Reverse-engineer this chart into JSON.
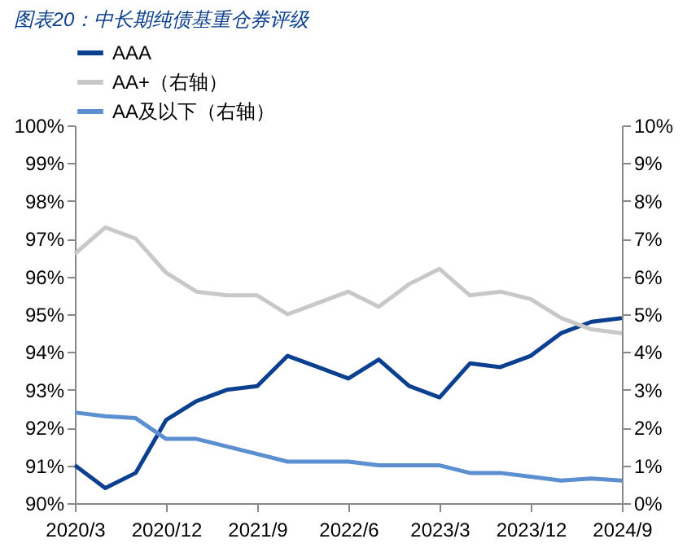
{
  "chart_data": {
    "type": "line",
    "title": "图表20：中长期纯债基重仓券评级",
    "categories": [
      "2020/3",
      null,
      null,
      "2020/12",
      null,
      null,
      "2021/9",
      null,
      null,
      "2022/6",
      null,
      null,
      "2023/3",
      null,
      null,
      "2023/12",
      null,
      null,
      "2024/9"
    ],
    "series": [
      {
        "name": "AAA",
        "color": "#0b3f8f",
        "values": [
          91.0,
          90.4,
          90.8,
          92.2,
          92.7,
          93.0,
          93.1,
          93.9,
          93.6,
          93.3,
          93.8,
          93.1,
          92.8,
          93.7,
          93.6,
          93.9,
          94.5,
          94.8,
          94.9
        ]
      },
      {
        "name": "AA+（右轴）",
        "color": "#c8c8c8",
        "axis": "y2",
        "values": [
          6.6,
          7.3,
          7.0,
          6.1,
          5.6,
          5.5,
          5.5,
          5.0,
          5.3,
          5.6,
          5.2,
          5.8,
          6.2,
          5.5,
          5.6,
          5.4,
          4.9,
          4.6,
          4.5
        ]
      },
      {
        "name": "AA及以下（右轴）",
        "color": "#5b8fd0",
        "axis": "y2",
        "values": [
          2.4,
          2.3,
          2.25,
          1.7,
          1.7,
          1.5,
          1.3,
          1.1,
          1.1,
          1.1,
          1.0,
          1.0,
          1.0,
          0.8,
          0.8,
          0.7,
          0.6,
          0.65,
          0.6
        ]
      }
    ],
    "ylim": [
      90,
      100
    ],
    "yticks": [
      {
        "value": 90,
        "label": "90%"
      },
      {
        "value": 91,
        "label": "91%"
      },
      {
        "value": 92,
        "label": "92%"
      },
      {
        "value": 93,
        "label": "93%"
      },
      {
        "value": 94,
        "label": "94%"
      },
      {
        "value": 95,
        "label": "95%"
      },
      {
        "value": 96,
        "label": "96%"
      },
      {
        "value": 97,
        "label": "97%"
      },
      {
        "value": 98,
        "label": "98%"
      },
      {
        "value": 99,
        "label": "99%"
      },
      {
        "value": 100,
        "label": "100%"
      }
    ],
    "y2lim": [
      0,
      10
    ],
    "y2ticks": [
      {
        "value": 0,
        "label": "0%"
      },
      {
        "value": 1,
        "label": "1%"
      },
      {
        "value": 2,
        "label": "2%"
      },
      {
        "value": 3,
        "label": "3%"
      },
      {
        "value": 4,
        "label": "4%"
      },
      {
        "value": 5,
        "label": "5%"
      },
      {
        "value": 6,
        "label": "6%"
      },
      {
        "value": 7,
        "label": "7%"
      },
      {
        "value": 8,
        "label": "8%"
      },
      {
        "value": 9,
        "label": "9%"
      },
      {
        "value": 10,
        "label": "10%"
      }
    ],
    "grid": false,
    "legend": "top",
    "marker": "none",
    "line_style": "solid"
  }
}
